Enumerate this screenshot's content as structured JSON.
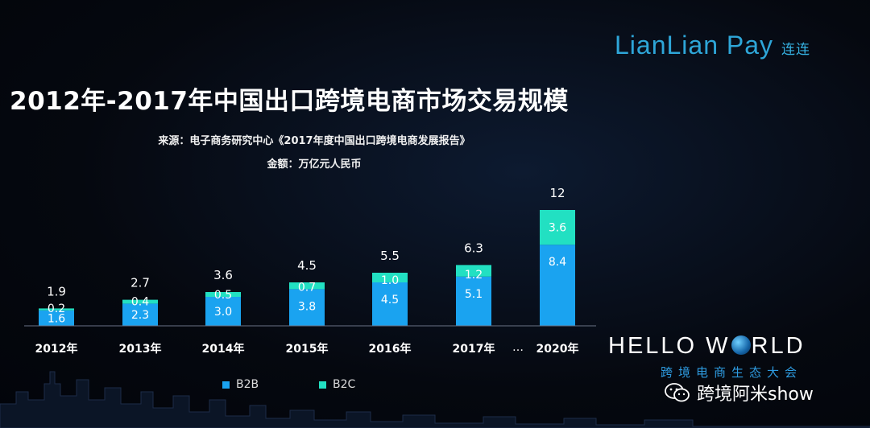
{
  "brand": {
    "name": "LianLian Pay",
    "name_cn": "连连"
  },
  "title": "2012年-2017年中国出口跨境电商市场交易规模",
  "subtitle_source": "来源：电子商务研究中心《2017年度中国出口跨境电商发展报告》",
  "subtitle_unit": "金额：万亿元人民币",
  "chart_data": {
    "type": "bar",
    "stacked": true,
    "categories": [
      "2012年",
      "2013年",
      "2014年",
      "2015年",
      "2016年",
      "2017年",
      "2020年"
    ],
    "axis_break_label": "…",
    "series": [
      {
        "name": "B2B",
        "values": [
          1.6,
          2.3,
          3.0,
          3.8,
          4.5,
          5.1,
          8.4
        ],
        "labels": [
          "1.6",
          "2.3",
          "3.0",
          "3.8",
          "4.5",
          "5.1",
          "8.4"
        ],
        "color": "#1aa3f0"
      },
      {
        "name": "B2C",
        "values": [
          0.2,
          0.4,
          0.5,
          0.7,
          1.0,
          1.2,
          3.6
        ],
        "labels": [
          "0.2",
          "0.4",
          "0.5",
          "0.7",
          "1.0",
          "1.2",
          "3.6"
        ],
        "color": "#22e0c2"
      }
    ],
    "totals": [
      "1.9",
      "2.7",
      "3.6",
      "4.5",
      "5.5",
      "6.3",
      "12"
    ],
    "ylim": [
      0,
      12
    ],
    "grid": false,
    "legend_position": "bottom"
  },
  "event": {
    "name_pre": "HELLO W",
    "name_post": "RLD",
    "subtitle": "跨境电商生态大会"
  },
  "wechat": {
    "account": "跨境阿米show"
  }
}
